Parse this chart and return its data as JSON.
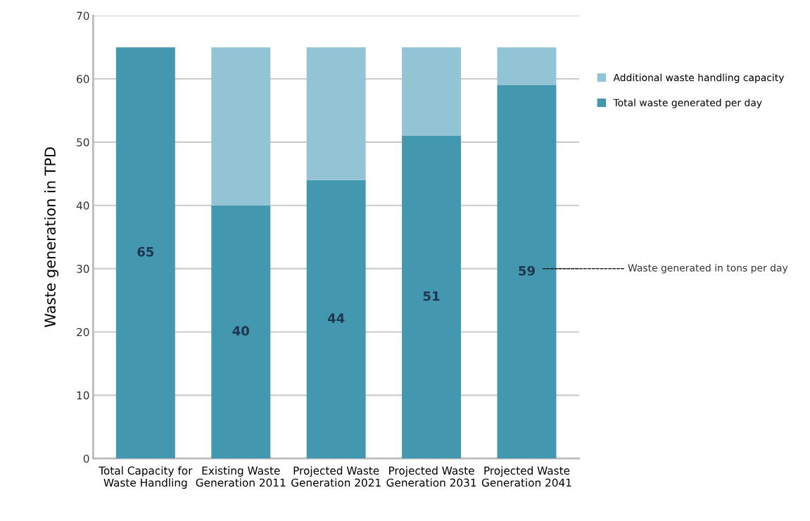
{
  "chart_data": {
    "type": "bar",
    "stacked": true,
    "ylabel": "Waste generation in TPD",
    "categories": [
      "Total Capacity for\nWaste Handling",
      "Existing Waste\nGeneration 2011",
      "Projected Waste\nGeneration 2021",
      "Projected Waste\nGeneration 2031",
      "Projected Waste\nGeneration 2041"
    ],
    "series": [
      {
        "name": "Total waste generated per day",
        "color": "#4398b0",
        "values": [
          65,
          40,
          44,
          51,
          59
        ],
        "value_labels": [
          "65",
          "40",
          "44",
          "51",
          "59"
        ]
      },
      {
        "name": "Additional waste handling capacity",
        "color": "#93c4d6",
        "values": [
          null,
          25,
          21,
          14,
          6
        ]
      }
    ],
    "ylim": [
      0,
      70
    ],
    "yticks": [
      0,
      10,
      20,
      30,
      40,
      50,
      60,
      70
    ],
    "grid": "y",
    "legend": "right",
    "annotations": [
      "Waste generated in tons per day"
    ]
  }
}
